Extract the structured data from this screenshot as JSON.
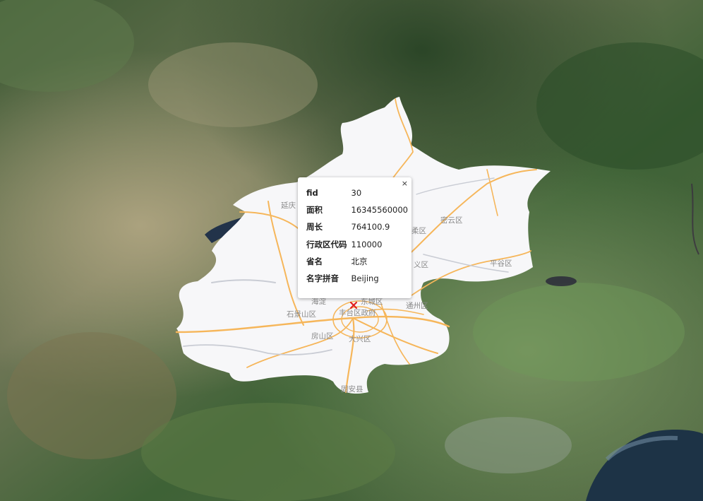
{
  "map": {
    "basemap": "satellite-imagery",
    "region_fill": "#f7f7f9",
    "road_color": "#f6b65a",
    "district_labels": [
      {
        "id": "yanqing",
        "text": "延庆"
      },
      {
        "id": "miyun",
        "text": "密云区"
      },
      {
        "id": "huairou",
        "text": "柔区"
      },
      {
        "id": "shunyi",
        "text": "义区"
      },
      {
        "id": "pinggu",
        "text": "平谷区"
      },
      {
        "id": "haidian",
        "text": "海淀"
      },
      {
        "id": "dongcheng",
        "text": "东城区"
      },
      {
        "id": "tongzhou",
        "text": "通州区"
      },
      {
        "id": "shijingshan",
        "text": "石景山区"
      },
      {
        "id": "fengtai",
        "text": "丰台区政府"
      },
      {
        "id": "fangshan",
        "text": "房山区"
      },
      {
        "id": "daxing",
        "text": "大兴区"
      },
      {
        "id": "guan",
        "text": "固安县"
      }
    ]
  },
  "popup": {
    "close_label": "×",
    "rows": [
      {
        "key": "fid",
        "value": "30"
      },
      {
        "key": "面积",
        "value": "16345560000"
      },
      {
        "key": "周长",
        "value": "764100.9"
      },
      {
        "key": "行政区代码",
        "value": "110000"
      },
      {
        "key": "省名",
        "value": "北京"
      },
      {
        "key": "名字拼音",
        "value": "Beijing"
      }
    ]
  },
  "marker": {
    "icon": "map-pin-icon",
    "color": "#e02020"
  }
}
